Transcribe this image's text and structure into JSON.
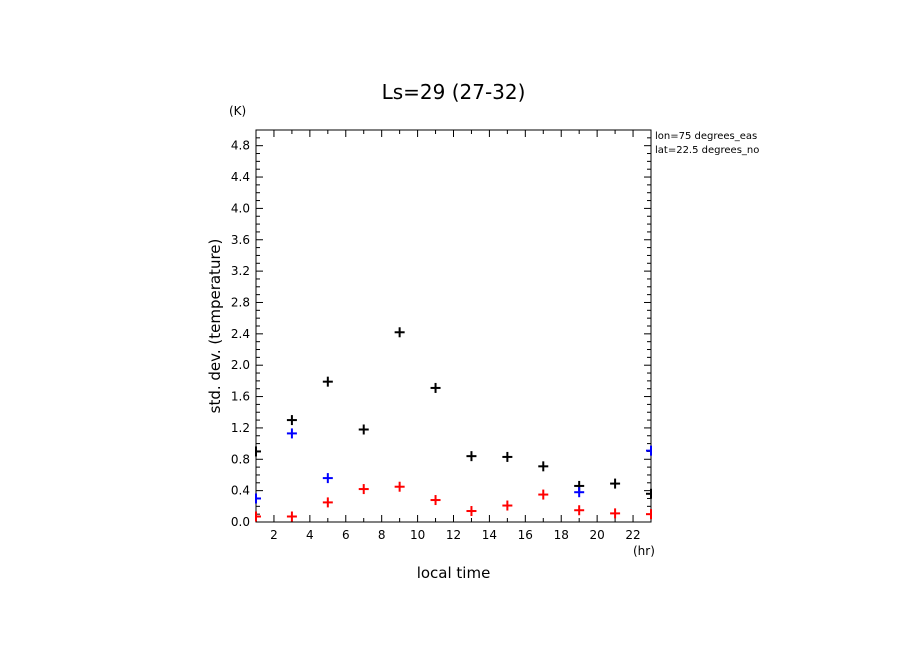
{
  "chart_data": {
    "type": "scatter",
    "title": "Ls=29 (27-32)",
    "xlabel": "local time",
    "ylabel": "std. dev. (temperature)",
    "x_unit": "(hr)",
    "y_unit": "(K)",
    "xlim": [
      1,
      23
    ],
    "ylim": [
      0,
      5.0
    ],
    "x_ticks": [
      2,
      4,
      6,
      8,
      10,
      12,
      14,
      16,
      18,
      20,
      22
    ],
    "y_ticks": [
      0.0,
      0.4,
      0.8,
      1.2,
      1.6,
      2.0,
      2.4,
      2.8,
      3.2,
      3.6,
      4.0,
      4.4,
      4.8
    ],
    "info": [
      "lon=75 degrees_eas",
      "lat=22.5 degrees_no"
    ],
    "grid": false,
    "marker": "plus",
    "series": [
      {
        "color": "#000000",
        "x": [
          1,
          3,
          5,
          7,
          9,
          11,
          13,
          15,
          17,
          19,
          21,
          23
        ],
        "y": [
          0.9,
          1.3,
          1.79,
          1.18,
          2.42,
          1.71,
          0.84,
          0.83,
          0.71,
          0.46,
          0.49,
          0.36
        ]
      },
      {
        "color": "#0000ff",
        "x": [
          1,
          3,
          5,
          19,
          23
        ],
        "y": [
          0.3,
          1.13,
          0.56,
          0.38,
          0.91
        ]
      },
      {
        "color": "#ff0000",
        "x": [
          1,
          3,
          5,
          7,
          9,
          11,
          13,
          15,
          17,
          19,
          21,
          23
        ],
        "y": [
          0.07,
          0.07,
          0.25,
          0.42,
          0.45,
          0.28,
          0.14,
          0.21,
          0.35,
          0.15,
          0.11,
          0.1
        ]
      }
    ]
  }
}
